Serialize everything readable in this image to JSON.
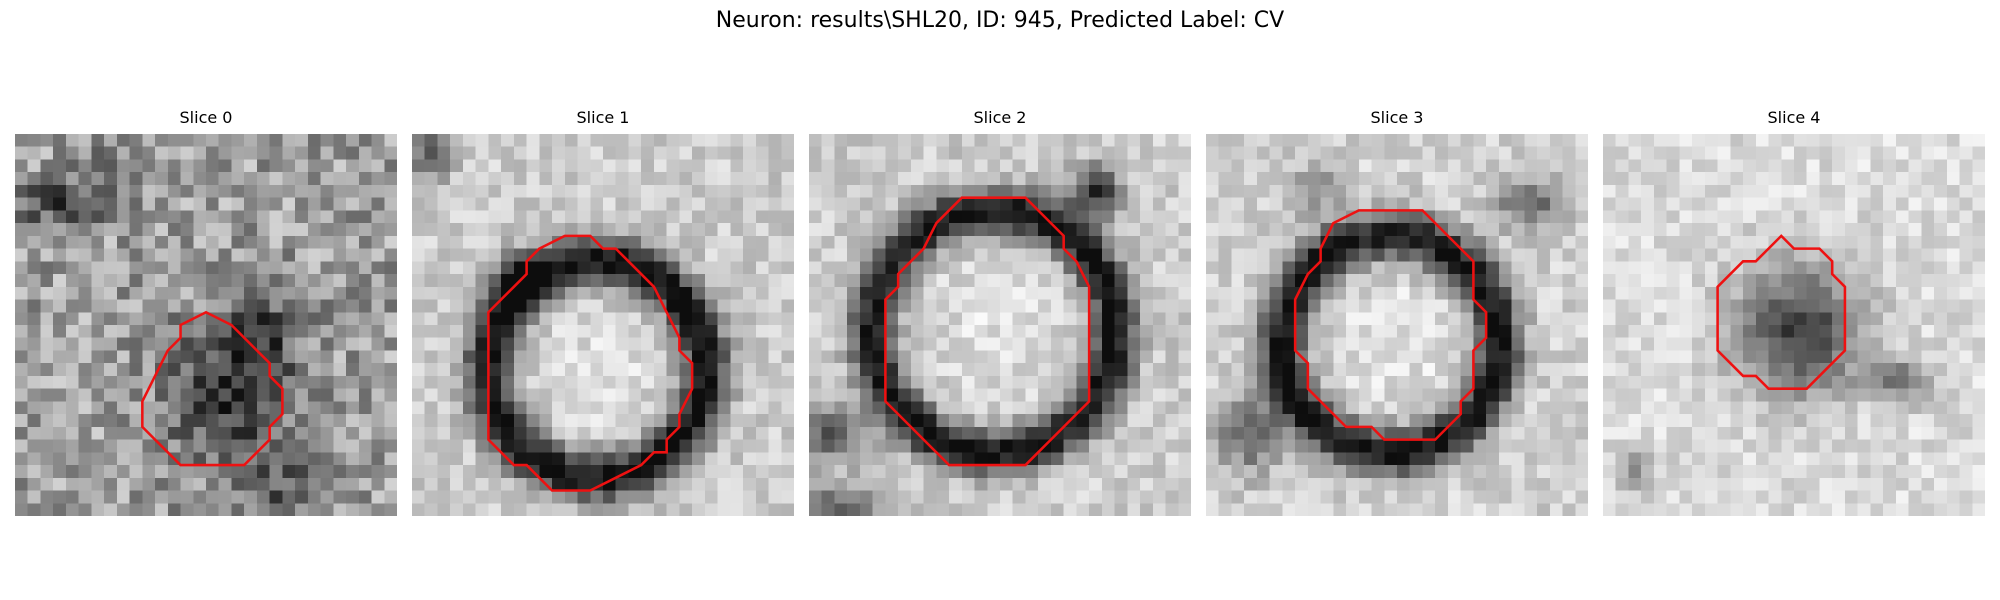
{
  "figure": {
    "title": "Neuron: results\\SHL20, ID: 945, Predicted Label: CV",
    "contour_color": "#ee1111"
  },
  "panels": [
    {
      "title": "Slice 0",
      "contour": [
        [
          13,
          15
        ],
        [
          15,
          14
        ],
        [
          17,
          15
        ],
        [
          18,
          16
        ],
        [
          19,
          17
        ],
        [
          20,
          18
        ],
        [
          20,
          19
        ],
        [
          21,
          20
        ],
        [
          21,
          21
        ],
        [
          21,
          22
        ],
        [
          20,
          23
        ],
        [
          20,
          24
        ],
        [
          19,
          25
        ],
        [
          18,
          26
        ],
        [
          16,
          26
        ],
        [
          14,
          26
        ],
        [
          13,
          26
        ],
        [
          12,
          25
        ],
        [
          11,
          24
        ],
        [
          10,
          23
        ],
        [
          10,
          21
        ],
        [
          11,
          19
        ],
        [
          12,
          17
        ],
        [
          13,
          16
        ]
      ]
    },
    {
      "title": "Slice 1",
      "contour": [
        [
          10,
          9
        ],
        [
          12,
          8
        ],
        [
          14,
          8
        ],
        [
          15,
          9
        ],
        [
          16,
          9
        ],
        [
          17,
          10
        ],
        [
          18,
          11
        ],
        [
          19,
          12
        ],
        [
          20,
          14
        ],
        [
          21,
          16
        ],
        [
          21,
          17
        ],
        [
          22,
          18
        ],
        [
          22,
          19
        ],
        [
          22,
          20
        ],
        [
          21,
          22
        ],
        [
          21,
          23
        ],
        [
          20,
          24
        ],
        [
          20,
          25
        ],
        [
          19,
          25
        ],
        [
          18,
          26
        ],
        [
          16,
          27
        ],
        [
          14,
          28
        ],
        [
          12,
          28
        ],
        [
          11,
          28
        ],
        [
          10,
          27
        ],
        [
          9,
          26
        ],
        [
          8,
          26
        ],
        [
          7,
          25
        ],
        [
          6,
          24
        ],
        [
          6,
          22
        ],
        [
          6,
          20
        ],
        [
          6,
          18
        ],
        [
          6,
          16
        ],
        [
          6,
          14
        ],
        [
          7,
          13
        ],
        [
          8,
          12
        ],
        [
          9,
          11
        ],
        [
          9,
          10
        ]
      ]
    },
    {
      "title": "Slice 2",
      "contour": [
        [
          10,
          7
        ],
        [
          12,
          5
        ],
        [
          15,
          5
        ],
        [
          17,
          5
        ],
        [
          18,
          6
        ],
        [
          19,
          7
        ],
        [
          20,
          8
        ],
        [
          20,
          9
        ],
        [
          21,
          10
        ],
        [
          22,
          12
        ],
        [
          22,
          13
        ],
        [
          22,
          15
        ],
        [
          22,
          17
        ],
        [
          22,
          19
        ],
        [
          22,
          21
        ],
        [
          21,
          22
        ],
        [
          20,
          23
        ],
        [
          19,
          24
        ],
        [
          18,
          25
        ],
        [
          17,
          26
        ],
        [
          15,
          26
        ],
        [
          13,
          26
        ],
        [
          11,
          26
        ],
        [
          10,
          25
        ],
        [
          9,
          24
        ],
        [
          8,
          23
        ],
        [
          7,
          22
        ],
        [
          6,
          21
        ],
        [
          6,
          19
        ],
        [
          6,
          17
        ],
        [
          6,
          15
        ],
        [
          6,
          13
        ],
        [
          7,
          12
        ],
        [
          7,
          11
        ],
        [
          8,
          10
        ],
        [
          9,
          9
        ]
      ]
    },
    {
      "title": "Slice 3",
      "contour": [
        [
          10,
          7
        ],
        [
          12,
          6
        ],
        [
          14,
          6
        ],
        [
          16,
          6
        ],
        [
          17,
          6
        ],
        [
          18,
          7
        ],
        [
          19,
          8
        ],
        [
          20,
          9
        ],
        [
          21,
          10
        ],
        [
          21,
          11
        ],
        [
          21,
          13
        ],
        [
          22,
          14
        ],
        [
          22,
          16
        ],
        [
          21,
          17
        ],
        [
          21,
          18
        ],
        [
          21,
          19
        ],
        [
          21,
          20
        ],
        [
          20,
          21
        ],
        [
          20,
          22
        ],
        [
          19,
          23
        ],
        [
          18,
          24
        ],
        [
          16,
          24
        ],
        [
          14,
          24
        ],
        [
          13,
          23
        ],
        [
          11,
          23
        ],
        [
          10,
          22
        ],
        [
          9,
          21
        ],
        [
          8,
          20
        ],
        [
          8,
          18
        ],
        [
          7,
          17
        ],
        [
          7,
          15
        ],
        [
          7,
          13
        ],
        [
          8,
          11
        ],
        [
          9,
          10
        ],
        [
          9,
          9
        ]
      ]
    },
    {
      "title": "Slice 4",
      "contour": [
        [
          13,
          9
        ],
        [
          14,
          8
        ],
        [
          15,
          9
        ],
        [
          16,
          9
        ],
        [
          17,
          9
        ],
        [
          18,
          10
        ],
        [
          18,
          11
        ],
        [
          19,
          12
        ],
        [
          19,
          13
        ],
        [
          19,
          15
        ],
        [
          19,
          16
        ],
        [
          19,
          17
        ],
        [
          18,
          18
        ],
        [
          17,
          19
        ],
        [
          16,
          20
        ],
        [
          14,
          20
        ],
        [
          13,
          20
        ],
        [
          12,
          19
        ],
        [
          11,
          19
        ],
        [
          10,
          18
        ],
        [
          9,
          17
        ],
        [
          9,
          16
        ],
        [
          9,
          14
        ],
        [
          9,
          12
        ],
        [
          10,
          11
        ],
        [
          11,
          10
        ],
        [
          12,
          10
        ]
      ]
    }
  ]
}
